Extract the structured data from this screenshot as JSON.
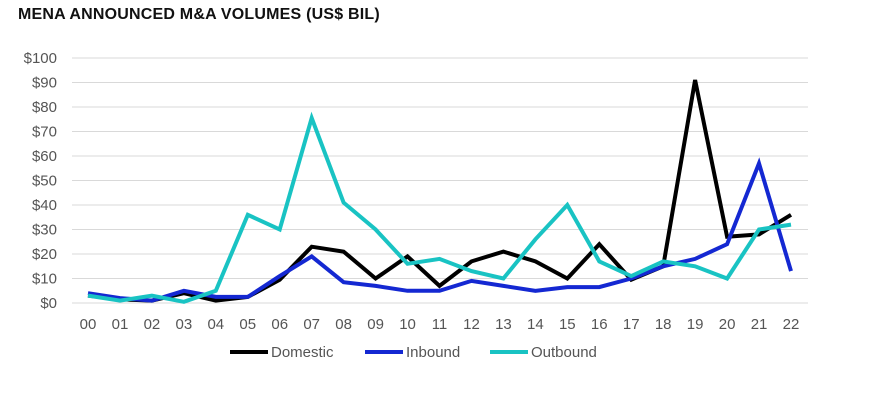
{
  "chart_data": {
    "type": "line",
    "title": "MENA ANNOUNCED M&A VOLUMES (US$ BIL)",
    "xlabel": "",
    "ylabel": "",
    "categories": [
      "00",
      "01",
      "02",
      "03",
      "04",
      "05",
      "06",
      "07",
      "08",
      "09",
      "10",
      "11",
      "12",
      "13",
      "14",
      "15",
      "16",
      "17",
      "18",
      "19",
      "20",
      "21",
      "22"
    ],
    "ylim": [
      0,
      100
    ],
    "yticks": [
      0,
      10,
      20,
      30,
      40,
      50,
      60,
      70,
      80,
      90,
      100
    ],
    "ytick_labels": [
      "$0",
      "$10",
      "$20",
      "$30",
      "$40",
      "$50",
      "$60",
      "$70",
      "$80",
      "$90",
      "$100"
    ],
    "grid": true,
    "legend_position": "bottom",
    "series": [
      {
        "name": "Domestic",
        "color": "#000000",
        "values": [
          3,
          1.5,
          1,
          4,
          1,
          2.5,
          9.5,
          23,
          21,
          10,
          19,
          7,
          17,
          21,
          17,
          10,
          24,
          9.5,
          15,
          91,
          27,
          28,
          36
        ]
      },
      {
        "name": "Inbound",
        "color": "#1428d2",
        "values": [
          4,
          2,
          1,
          5,
          2.5,
          2.5,
          11,
          19,
          8.5,
          7,
          5,
          5,
          9,
          7,
          5,
          6.5,
          6.5,
          10,
          15,
          18,
          24,
          57,
          13
        ]
      },
      {
        "name": "Outbound",
        "color": "#19c3c3",
        "values": [
          3,
          1,
          3,
          0.5,
          5,
          36,
          30,
          75.5,
          41,
          30,
          16,
          18,
          13,
          10,
          26,
          40,
          17,
          11,
          17,
          15,
          10,
          30,
          32
        ]
      }
    ]
  }
}
